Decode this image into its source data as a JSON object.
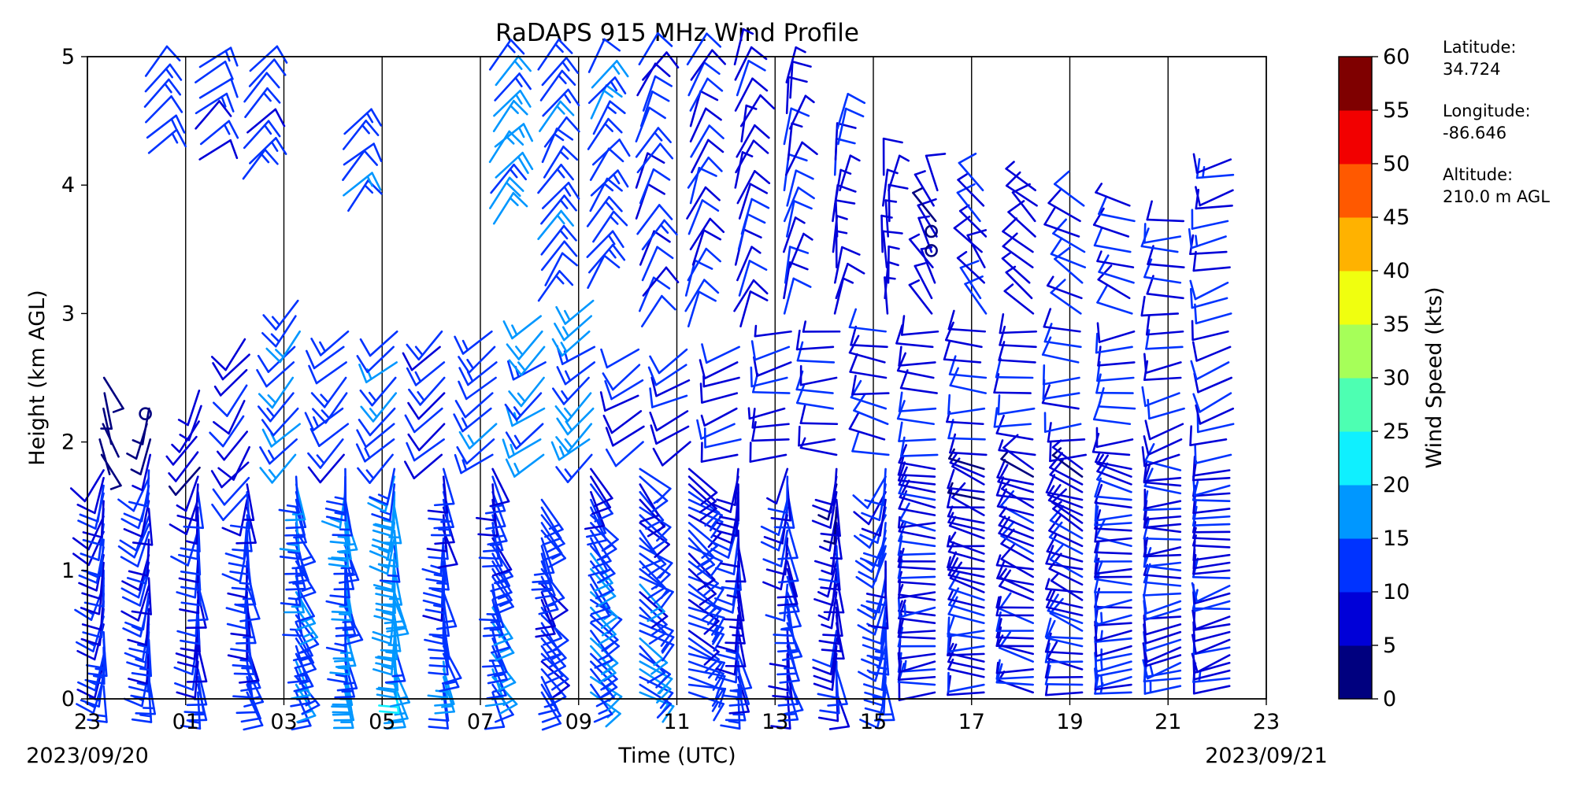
{
  "chart_data": {
    "type": "wind-barbs",
    "title": "RaDAPS 915 MHz Wind Profile",
    "xlabel": "Time (UTC)",
    "ylabel": "Height (km AGL)",
    "xlim": [
      0,
      24
    ],
    "ylim": [
      0,
      5
    ],
    "x_tick_labels": [
      "23",
      "01",
      "03",
      "05",
      "07",
      "09",
      "11",
      "13",
      "15",
      "17",
      "19",
      "21",
      "23"
    ],
    "y_tick_labels": [
      "0",
      "1",
      "2",
      "3",
      "4",
      "5"
    ],
    "start_date": "2023/09/20",
    "end_date": "2023/09/21",
    "colorbar": {
      "label": "Wind Speed (kts)",
      "ticks": [
        "0",
        "5",
        "10",
        "15",
        "20",
        "25",
        "30",
        "35",
        "40",
        "45",
        "50",
        "55",
        "60"
      ],
      "colors": [
        "#00007f",
        "#0000d8",
        "#0033ff",
        "#0097ff",
        "#0ff0ff",
        "#4dffb2",
        "#a6ff59",
        "#f0ff0f",
        "#ffb200",
        "#ff5900",
        "#f20000",
        "#7f0000"
      ]
    },
    "profiles": [
      {
        "t": 0.33,
        "min": 0.1,
        "max": 1.8,
        "speed": 12,
        "dir": 180,
        "upper": [
          [
            1.9,
            2.6,
            3,
            160
          ]
        ]
      },
      {
        "t": 1.25,
        "min": 0.1,
        "max": 1.8,
        "speed": 13,
        "dir": 175,
        "upper": [
          [
            1.9,
            2.3,
            5,
            200
          ],
          [
            4.25,
            4.95,
            12,
            45
          ]
        ]
      },
      {
        "t": 2.25,
        "min": 0.05,
        "max": 1.75,
        "speed": 12,
        "dir": 170,
        "upper": [
          [
            1.8,
            2.4,
            5,
            210
          ],
          [
            4.2,
            4.95,
            11,
            50
          ]
        ]
      },
      {
        "t": 3.25,
        "min": 0.05,
        "max": 1.7,
        "speed": 13,
        "dir": 165,
        "upper": [
          [
            1.6,
            2.8,
            8,
            215
          ],
          [
            4.05,
            4.95,
            12,
            48
          ]
        ]
      },
      {
        "t": 4.25,
        "min": 0.05,
        "max": 1.75,
        "speed": 16,
        "dir": 150,
        "upper": [
          [
            1.9,
            3.1,
            14,
            220
          ]
        ]
      },
      {
        "t": 5.25,
        "min": 0.05,
        "max": 1.8,
        "speed": 17,
        "dir": 160,
        "upper": [
          [
            1.9,
            2.9,
            12,
            225
          ],
          [
            3.8,
            4.5,
            13,
            45
          ]
        ]
      },
      {
        "t": 6.25,
        "min": 0.05,
        "max": 1.8,
        "speed": 18,
        "dir": 165,
        "upper": [
          [
            1.9,
            2.9,
            13,
            230
          ]
        ]
      },
      {
        "t": 7.25,
        "min": 0.05,
        "max": 1.8,
        "speed": 14,
        "dir": 160,
        "upper": [
          [
            1.9,
            2.9,
            11,
            230
          ]
        ]
      },
      {
        "t": 8.25,
        "min": 0.05,
        "max": 1.8,
        "speed": 15,
        "dir": 150,
        "upper": [
          [
            1.9,
            2.9,
            14,
            230
          ],
          [
            3.7,
            4.95,
            16,
            40
          ]
        ]
      },
      {
        "t": 9.25,
        "min": 0.05,
        "max": 1.6,
        "speed": 13,
        "dir": 140,
        "upper": [
          [
            1.9,
            3.0,
            15,
            230
          ],
          [
            3.1,
            4.95,
            14,
            35
          ]
        ]
      },
      {
        "t": 10.25,
        "min": 0.05,
        "max": 1.8,
        "speed": 15,
        "dir": 130,
        "upper": [
          [
            1.9,
            3.1,
            15,
            230
          ],
          [
            3.2,
            4.95,
            13,
            35
          ]
        ]
      },
      {
        "t": 11.25,
        "min": 0.05,
        "max": 1.8,
        "speed": 14,
        "dir": 120,
        "upper": [
          [
            2.0,
            2.8,
            10,
            235
          ],
          [
            2.9,
            4.95,
            11,
            30
          ]
        ]
      },
      {
        "t": 12.25,
        "min": 0.05,
        "max": 1.8,
        "speed": 13,
        "dir": 110,
        "upper": [
          [
            2.0,
            2.8,
            10,
            240
          ],
          [
            2.9,
            4.95,
            10,
            25
          ]
        ]
      },
      {
        "t": 13.25,
        "min": 0.05,
        "max": 1.8,
        "speed": 11,
        "dir": 170,
        "upper": [
          [
            1.9,
            2.8,
            9,
            250
          ],
          [
            2.9,
            4.95,
            9,
            20
          ]
        ]
      },
      {
        "t": 14.25,
        "min": 0.05,
        "max": 1.8,
        "speed": 12,
        "dir": 165,
        "upper": [
          [
            1.9,
            2.9,
            9,
            260
          ],
          [
            3.0,
            4.9,
            9,
            15
          ]
        ]
      },
      {
        "t": 15.25,
        "min": 0.05,
        "max": 1.8,
        "speed": 10,
        "dir": 170,
        "upper": [
          [
            1.9,
            2.9,
            9,
            270
          ],
          [
            3.0,
            4.5,
            8,
            10
          ]
        ]
      },
      {
        "t": 16.25,
        "min": 0.05,
        "max": 1.8,
        "speed": 13,
        "dir": 180,
        "upper": [
          [
            1.9,
            2.9,
            10,
            280
          ],
          [
            3.0,
            4.1,
            7,
            5
          ]
        ]
      },
      {
        "t": 17.25,
        "min": 0.05,
        "max": 1.8,
        "speed": 11,
        "dir": 260,
        "upper": [
          [
            1.9,
            2.9,
            10,
            275
          ],
          [
            3.0,
            4.0,
            7,
            330
          ]
        ]
      },
      {
        "t": 18.25,
        "min": 0.05,
        "max": 1.8,
        "speed": 10,
        "dir": 270,
        "upper": [
          [
            1.9,
            2.9,
            9,
            270
          ],
          [
            3.0,
            4.0,
            8,
            320
          ]
        ]
      },
      {
        "t": 19.25,
        "min": 0.05,
        "max": 1.8,
        "speed": 10,
        "dir": 275,
        "upper": [
          [
            1.9,
            2.9,
            9,
            270
          ],
          [
            3.0,
            4.0,
            8,
            315
          ]
        ]
      },
      {
        "t": 20.25,
        "min": 0.05,
        "max": 1.8,
        "speed": 10,
        "dir": 280,
        "upper": [
          [
            1.9,
            2.9,
            9,
            270
          ],
          [
            3.0,
            3.9,
            9,
            300
          ]
        ]
      },
      {
        "t": 21.25,
        "min": 0.05,
        "max": 1.8,
        "speed": 11,
        "dir": 260,
        "upper": [
          [
            1.9,
            2.9,
            10,
            265
          ],
          [
            3.0,
            3.9,
            9,
            290
          ]
        ]
      },
      {
        "t": 22.25,
        "min": 0.1,
        "max": 1.8,
        "speed": 11,
        "dir": 255,
        "upper": [
          [
            1.9,
            2.9,
            10,
            255
          ],
          [
            3.0,
            3.8,
            10,
            270
          ]
        ]
      },
      {
        "t": 23.25,
        "min": 0.1,
        "max": 1.8,
        "speed": 11,
        "dir": 250,
        "upper": [
          [
            1.9,
            2.9,
            10,
            250
          ],
          [
            3.0,
            4.2,
            11,
            255
          ]
        ]
      }
    ],
    "calm_markers": [
      [
        1.18,
        2.22
      ],
      [
        17.18,
        3.49
      ],
      [
        17.18,
        3.64
      ]
    ]
  },
  "station_info": {
    "latitude_label": "Latitude:",
    "latitude_value": "34.724",
    "longitude_label": "Longitude:",
    "longitude_value": "-86.646",
    "altitude_label": "Altitude:",
    "altitude_value": "210.0 m AGL"
  }
}
